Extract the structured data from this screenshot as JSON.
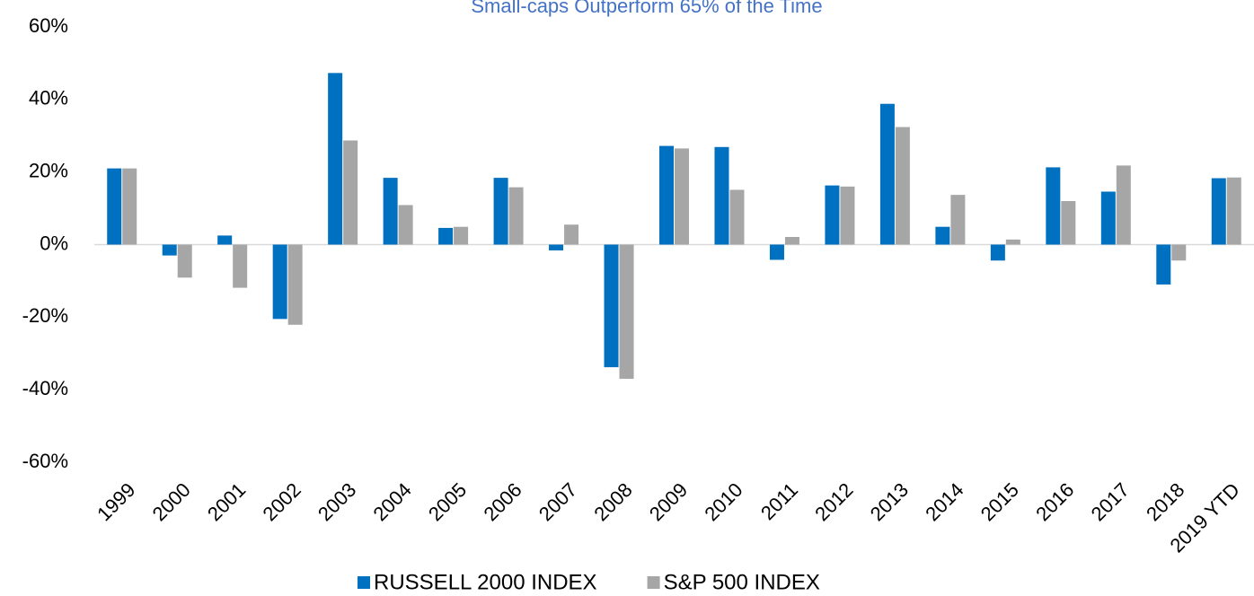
{
  "chart_data": {
    "type": "bar",
    "title": "Small-caps Outperform 65% of the Time",
    "categories": [
      "1999",
      "2000",
      "2001",
      "2002",
      "2003",
      "2004",
      "2005",
      "2006",
      "2007",
      "2008",
      "2009",
      "2010",
      "2011",
      "2012",
      "2013",
      "2014",
      "2015",
      "2016",
      "2017",
      "2018",
      "2019 YTD"
    ],
    "series": [
      {
        "name": "RUSSELL 2000 INDEX",
        "color": "#0070c0",
        "values": [
          21.0,
          -3.0,
          2.5,
          -20.5,
          47.3,
          18.4,
          4.6,
          18.4,
          -1.6,
          -33.8,
          27.2,
          26.9,
          -4.2,
          16.3,
          38.8,
          4.9,
          -4.4,
          21.3,
          14.6,
          -11.0,
          18.3
        ]
      },
      {
        "name": "S&P 500 INDEX",
        "color": "#a6a6a6",
        "values": [
          21.0,
          -9.1,
          -11.9,
          -22.1,
          28.7,
          10.9,
          4.9,
          15.8,
          5.5,
          -37.0,
          26.5,
          15.1,
          2.1,
          16.0,
          32.4,
          13.7,
          1.4,
          12.0,
          21.8,
          -4.4,
          18.5
        ]
      }
    ],
    "ylim": [
      -60,
      60
    ],
    "yticks": [
      {
        "value": -60,
        "label": "-60%"
      },
      {
        "value": -40,
        "label": "-40%"
      },
      {
        "value": -20,
        "label": "-20%"
      },
      {
        "value": 0,
        "label": "0%"
      },
      {
        "value": 20,
        "label": "20%"
      },
      {
        "value": 40,
        "label": "40%"
      },
      {
        "value": 60,
        "label": "60%"
      }
    ],
    "legend": "bottom"
  }
}
